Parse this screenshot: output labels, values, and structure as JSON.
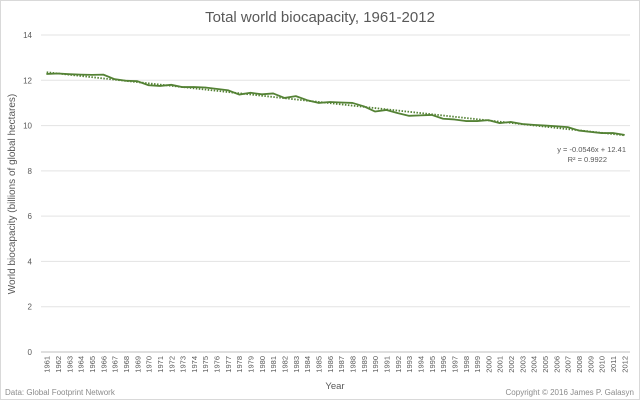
{
  "chart_data": {
    "type": "line",
    "title": "Total world biocapacity, 1961-2012",
    "xlabel": "Year",
    "ylabel": "World biocapacity (billions of global hectares)",
    "ylim": [
      0,
      14
    ],
    "yticks": [
      0,
      2,
      4,
      6,
      8,
      10,
      12,
      14
    ],
    "grid": true,
    "x": [
      1961,
      1962,
      1963,
      1964,
      1965,
      1966,
      1967,
      1968,
      1969,
      1970,
      1971,
      1972,
      1973,
      1974,
      1975,
      1976,
      1977,
      1978,
      1979,
      1980,
      1981,
      1982,
      1983,
      1984,
      1985,
      1986,
      1987,
      1988,
      1989,
      1990,
      1991,
      1992,
      1993,
      1994,
      1995,
      1996,
      1997,
      1998,
      1999,
      2000,
      2001,
      2002,
      2003,
      2004,
      2005,
      2006,
      2007,
      2008,
      2009,
      2010,
      2011,
      2012
    ],
    "series": [
      {
        "name": "World biocapacity",
        "color": "#548235",
        "values": [
          12.28,
          12.3,
          12.27,
          12.25,
          12.24,
          12.25,
          12.05,
          11.98,
          11.96,
          11.78,
          11.75,
          11.8,
          11.7,
          11.7,
          11.68,
          11.62,
          11.56,
          11.37,
          11.45,
          11.38,
          11.42,
          11.22,
          11.3,
          11.12,
          11.0,
          11.04,
          11.02,
          11.0,
          10.85,
          10.62,
          10.69,
          10.55,
          10.43,
          10.45,
          10.47,
          10.3,
          10.27,
          10.2,
          10.2,
          10.24,
          10.11,
          10.16,
          10.07,
          10.03,
          10.0,
          9.97,
          9.93,
          9.78,
          9.72,
          9.67,
          9.67,
          9.59
        ]
      }
    ],
    "trendline": {
      "type": "linear",
      "slope": -0.0546,
      "intercept": 12.41,
      "equation": "y = -0.0546x + 12.41",
      "r2_label": "R² = 0.9922"
    },
    "source": "Data: Global Footprint Network",
    "copyright": "Copyright © 2016 James P. Galasyn"
  }
}
